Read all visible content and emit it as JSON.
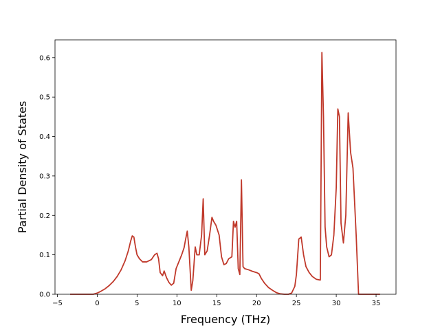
{
  "chart_data": {
    "type": "line",
    "title": "",
    "xlabel": "Frequency (THz)",
    "ylabel": "Partial Density of States",
    "xlim": [
      -5.3,
      37.5
    ],
    "ylim": [
      0.0,
      0.645
    ],
    "xticks": [
      -5,
      0,
      5,
      10,
      15,
      20,
      25,
      30,
      35
    ],
    "yticks": [
      0.0,
      0.1,
      0.2,
      0.3,
      0.4,
      0.5,
      0.6
    ],
    "xtick_labels": [
      "−5",
      "0",
      "5",
      "10",
      "15",
      "20",
      "25",
      "30",
      "35"
    ],
    "ytick_labels": [
      "0.0",
      "0.1",
      "0.2",
      "0.3",
      "0.4",
      "0.5",
      "0.6"
    ],
    "grid": false,
    "legend": "none",
    "series": [
      {
        "color": "#c0392b",
        "x": [
          -3.4,
          -0.5,
          0,
          0.5,
          1,
          1.5,
          2,
          2.5,
          3,
          3.5,
          3.9,
          4.2,
          4.4,
          4.6,
          4.8,
          5.0,
          5.3,
          5.7,
          6.2,
          6.8,
          7.2,
          7.5,
          7.7,
          7.9,
          8.2,
          8.4,
          8.7,
          9.0,
          9.3,
          9.6,
          9.9,
          10.3,
          10.6,
          10.9,
          11.1,
          11.3,
          11.5,
          11.8,
          12.0,
          12.3,
          12.5,
          12.8,
          13.1,
          13.3,
          13.5,
          13.8,
          14.1,
          14.4,
          14.6,
          14.9,
          15.3,
          15.6,
          15.9,
          16.2,
          16.5,
          16.9,
          17.1,
          17.3,
          17.5,
          17.7,
          17.9,
          18.1,
          18.3,
          18.5,
          19.0,
          19.5,
          20.0,
          20.3,
          20.6,
          21.0,
          21.5,
          22.0,
          22.5,
          23.0,
          23.5,
          24.0,
          24.4,
          24.8,
          25.0,
          25.3,
          25.6,
          25.9,
          26.2,
          26.6,
          27.0,
          27.5,
          28.0,
          28.2,
          28.4,
          28.6,
          28.8,
          29.1,
          29.4,
          29.7,
          30.0,
          30.2,
          30.4,
          30.6,
          30.9,
          31.2,
          31.5,
          31.8,
          32.1,
          32.5,
          32.8,
          33.0,
          35.5
        ],
        "y": [
          0.0,
          0.0,
          0.003,
          0.008,
          0.014,
          0.022,
          0.032,
          0.045,
          0.062,
          0.085,
          0.11,
          0.135,
          0.148,
          0.145,
          0.12,
          0.1,
          0.09,
          0.082,
          0.082,
          0.088,
          0.1,
          0.104,
          0.09,
          0.055,
          0.047,
          0.059,
          0.042,
          0.03,
          0.023,
          0.028,
          0.065,
          0.085,
          0.1,
          0.118,
          0.14,
          0.16,
          0.12,
          0.01,
          0.035,
          0.12,
          0.1,
          0.1,
          0.15,
          0.242,
          0.1,
          0.11,
          0.15,
          0.195,
          0.185,
          0.175,
          0.15,
          0.095,
          0.075,
          0.078,
          0.09,
          0.095,
          0.185,
          0.17,
          0.185,
          0.065,
          0.05,
          0.29,
          0.07,
          0.065,
          0.062,
          0.058,
          0.055,
          0.052,
          0.04,
          0.028,
          0.017,
          0.01,
          0.004,
          0.001,
          0.0,
          0.0,
          0.003,
          0.02,
          0.05,
          0.14,
          0.145,
          0.1,
          0.07,
          0.055,
          0.045,
          0.038,
          0.036,
          0.613,
          0.45,
          0.17,
          0.12,
          0.095,
          0.1,
          0.15,
          0.27,
          0.47,
          0.45,
          0.18,
          0.13,
          0.2,
          0.46,
          0.36,
          0.32,
          0.15,
          0.0,
          0.0,
          0.0
        ]
      }
    ]
  }
}
